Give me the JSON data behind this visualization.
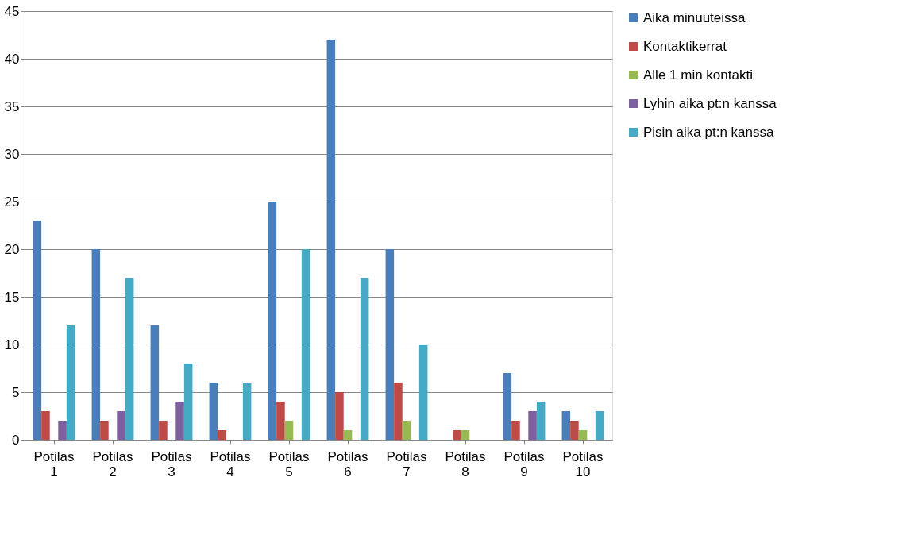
{
  "chart_data": {
    "type": "bar",
    "categories": [
      "Potilas 1",
      "Potilas 2",
      "Potilas 3",
      "Potilas 4",
      "Potilas 5",
      "Potilas 6",
      "Potilas 7",
      "Potilas 8",
      "Potilas 9",
      "Potilas 10"
    ],
    "series": [
      {
        "name": "Aika minuuteissa",
        "color": "#4a7ebb",
        "values": [
          23,
          20,
          12,
          6,
          25,
          42,
          20,
          0,
          7,
          3
        ]
      },
      {
        "name": "Kontaktikerrat",
        "color": "#be4b48",
        "values": [
          3,
          2,
          2,
          1,
          4,
          5,
          6,
          1,
          2,
          2
        ]
      },
      {
        "name": "Alle 1 min kontakti",
        "color": "#98b954",
        "values": [
          0,
          0,
          0,
          0,
          2,
          1,
          2,
          1,
          0,
          1
        ]
      },
      {
        "name": "Lyhin aika pt:n kanssa",
        "color": "#7d60a0",
        "values": [
          2,
          3,
          4,
          0,
          0,
          0,
          0,
          0,
          3,
          0
        ]
      },
      {
        "name": "Pisin aika pt:n kanssa",
        "color": "#46aac5",
        "values": [
          12,
          17,
          8,
          6,
          20,
          17,
          10,
          0,
          4,
          3
        ]
      }
    ],
    "ylim": [
      0,
      45
    ],
    "yticks": [
      0,
      5,
      10,
      15,
      20,
      25,
      30,
      35,
      40,
      45
    ],
    "grid": "y",
    "legend": "right"
  }
}
